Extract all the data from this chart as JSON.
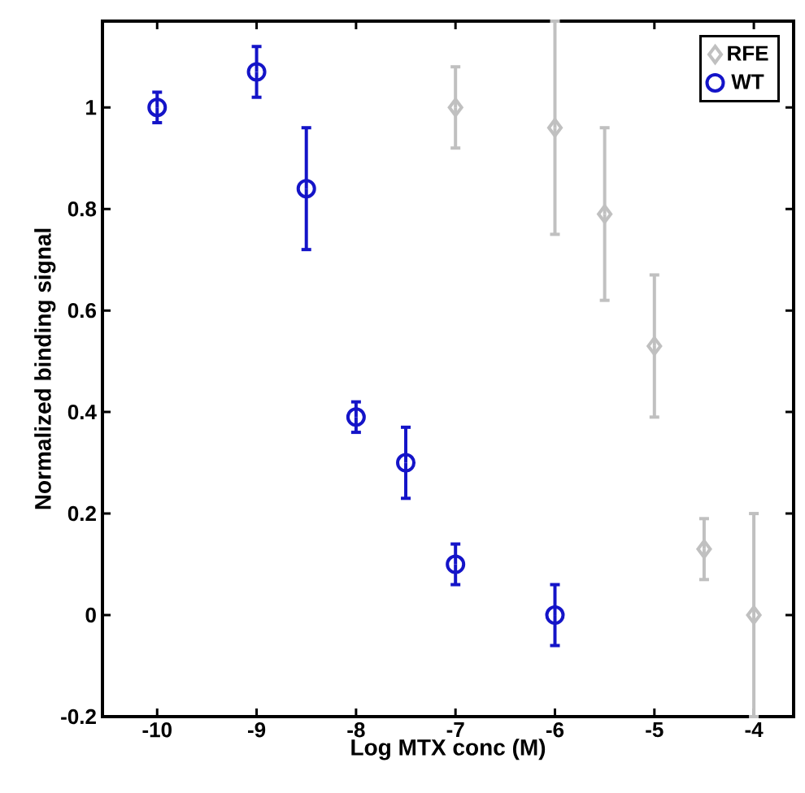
{
  "chart_data": {
    "type": "scatter",
    "xlabel": "Log MTX conc (M)",
    "ylabel": "Normalized binding signal",
    "xlim": [
      -10.55,
      -3.6
    ],
    "ylim": [
      -0.2,
      1.17
    ],
    "xticks": [
      -10,
      -9,
      -8,
      -7,
      -6,
      -5,
      -4
    ],
    "yticks": [
      -0.2,
      0,
      0.2,
      0.4,
      0.6,
      0.8,
      1
    ],
    "legend": "top right",
    "grid": false,
    "series": [
      {
        "name": "RFE",
        "color": "#c0c0c0",
        "marker": "diamond",
        "x": [
          -7,
          -6,
          -5.5,
          -5,
          -4.5,
          -4
        ],
        "values": [
          1.0,
          0.96,
          0.79,
          0.53,
          0.13,
          0.0
        ],
        "errors": [
          [
            0.92,
            1.08
          ],
          [
            0.75,
            1.17
          ],
          [
            0.62,
            0.96
          ],
          [
            0.39,
            0.67
          ],
          [
            0.07,
            0.19
          ],
          [
            -0.2,
            0.2
          ]
        ]
      },
      {
        "name": "WT",
        "color": "#1414c8",
        "marker": "circle",
        "x": [
          -10,
          -9,
          -8.5,
          -8,
          -7.5,
          -7,
          -6
        ],
        "values": [
          1.0,
          1.07,
          0.84,
          0.39,
          0.3,
          0.1,
          0.0
        ],
        "errors": [
          0.03,
          0.05,
          [
            0.72,
            0.96
          ],
          0.03,
          [
            0.23,
            0.37
          ],
          0.04,
          0.06
        ]
      }
    ]
  }
}
